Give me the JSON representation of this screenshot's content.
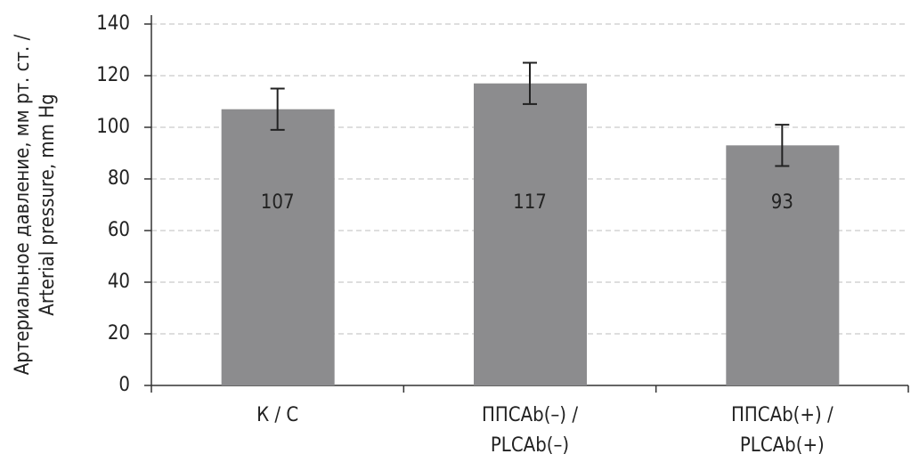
{
  "chart_data": {
    "type": "bar",
    "y_label": [
      "Артериальное давление, мм рт. ст. /",
      "Arterial pressure, mm Hg"
    ],
    "categories": [
      [
        "К / С"
      ],
      [
        "ППСAb(–) /",
        "PLCAb(–)"
      ],
      [
        "ППСAb(+) /",
        "PLCAb(+)"
      ]
    ],
    "values": [
      107,
      117,
      93
    ],
    "errors": [
      8,
      8,
      8
    ],
    "color": "#8c8c8e",
    "ylim": [
      0,
      140
    ],
    "yticks": [
      0,
      20,
      40,
      60,
      80,
      100,
      120,
      140
    ],
    "grid": true
  }
}
